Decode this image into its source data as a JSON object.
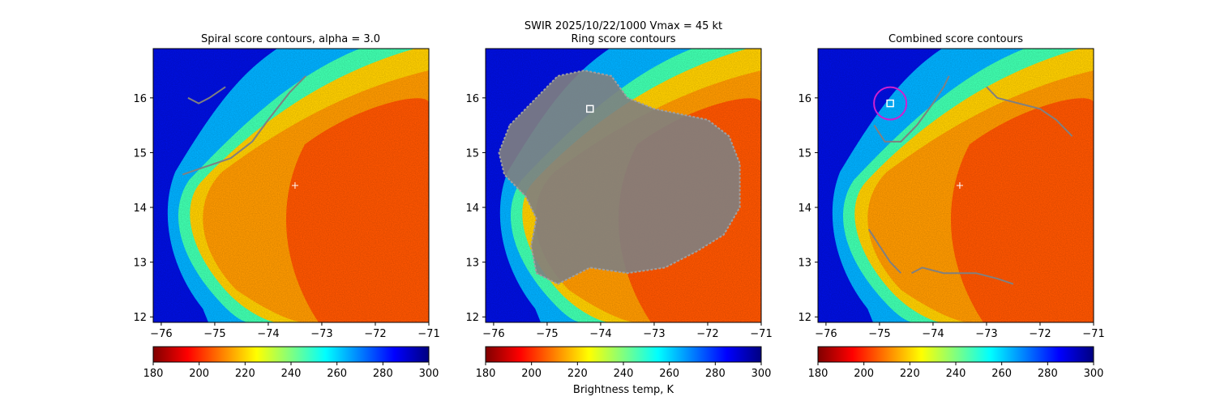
{
  "chart_data": {
    "type": "heatmap",
    "suptitle": "SWIR  2025/10/22/1000    Vmax = 45 kt",
    "colorbar_label": "Brightness temp, K",
    "colorbar_range": [
      180,
      300
    ],
    "colorbar_ticks": [
      180,
      200,
      220,
      240,
      260,
      280,
      300
    ],
    "colormap_stops": [
      {
        "v": 180,
        "c": "#800000"
      },
      {
        "v": 195,
        "c": "#ff0000"
      },
      {
        "v": 210,
        "c": "#ff8000"
      },
      {
        "v": 225,
        "c": "#ffff00"
      },
      {
        "v": 240,
        "c": "#80ff80"
      },
      {
        "v": 255,
        "c": "#00ffff"
      },
      {
        "v": 270,
        "c": "#0080ff"
      },
      {
        "v": 285,
        "c": "#0000ff"
      },
      {
        "v": 300,
        "c": "#000080"
      }
    ],
    "xlim": [
      -76.15,
      -71.0
    ],
    "ylim": [
      11.9,
      16.9
    ],
    "x_ticks": [
      -76,
      -75,
      -74,
      -73,
      -72,
      -71
    ],
    "x_tick_labels": [
      "−76",
      "−75",
      "−74",
      "−73",
      "−72",
      "−71"
    ],
    "y_ticks": [
      12,
      13,
      14,
      15,
      16
    ],
    "y_tick_labels": [
      "12",
      "13",
      "14",
      "15",
      "16"
    ],
    "contour_color": "#808080",
    "panels": [
      {
        "title": "Spiral score contours, alpha =  3.0",
        "center_marker": {
          "x": -73.5,
          "y": 14.4
        },
        "contours": [
          [
            [
              -75.5,
              16.0
            ],
            [
              -75.3,
              15.9
            ],
            [
              -75.1,
              16.0
            ],
            [
              -74.8,
              16.2
            ]
          ],
          [
            [
              -75.6,
              14.6
            ],
            [
              -75.3,
              14.7
            ],
            [
              -75.0,
              14.8
            ],
            [
              -74.7,
              14.9
            ],
            [
              -74.3,
              15.2
            ],
            [
              -74.0,
              15.6
            ],
            [
              -73.6,
              16.1
            ],
            [
              -73.3,
              16.4
            ]
          ]
        ]
      },
      {
        "title": "Ring score contours",
        "center_marker": {
          "x": -74.2,
          "y": 15.8
        },
        "ring_region": [
          [
            -75.7,
            15.5
          ],
          [
            -75.2,
            16.0
          ],
          [
            -74.8,
            16.4
          ],
          [
            -74.3,
            16.5
          ],
          [
            -73.8,
            16.4
          ],
          [
            -73.5,
            16.0
          ],
          [
            -73.0,
            15.8
          ],
          [
            -72.5,
            15.7
          ],
          [
            -72.0,
            15.6
          ],
          [
            -71.6,
            15.3
          ],
          [
            -71.4,
            14.8
          ],
          [
            -71.4,
            14.0
          ],
          [
            -71.7,
            13.5
          ],
          [
            -72.2,
            13.2
          ],
          [
            -72.8,
            12.9
          ],
          [
            -73.5,
            12.8
          ],
          [
            -74.2,
            12.9
          ],
          [
            -74.8,
            12.6
          ],
          [
            -75.2,
            12.8
          ],
          [
            -75.3,
            13.3
          ],
          [
            -75.2,
            13.8
          ],
          [
            -75.4,
            14.2
          ],
          [
            -75.8,
            14.6
          ],
          [
            -75.9,
            15.0
          ]
        ]
      },
      {
        "title": "Combined score contours",
        "center_marker": {
          "x": -73.5,
          "y": 14.4
        },
        "selected_center": {
          "x": -74.8,
          "y": 15.9
        },
        "circle_color": "#d020d0",
        "contours": [
          [
            [
              -75.1,
              15.5
            ],
            [
              -74.9,
              15.2
            ],
            [
              -74.6,
              15.2
            ],
            [
              -74.3,
              15.5
            ],
            [
              -74.0,
              15.9
            ],
            [
              -73.8,
              16.2
            ],
            [
              -73.7,
              16.4
            ]
          ],
          [
            [
              -73.0,
              16.2
            ],
            [
              -72.8,
              16.0
            ],
            [
              -72.4,
              15.9
            ],
            [
              -72.0,
              15.8
            ],
            [
              -71.7,
              15.6
            ],
            [
              -71.4,
              15.3
            ]
          ],
          [
            [
              -75.2,
              13.6
            ],
            [
              -75.0,
              13.3
            ],
            [
              -74.8,
              13.0
            ],
            [
              -74.6,
              12.8
            ]
          ],
          [
            [
              -74.4,
              12.8
            ],
            [
              -74.2,
              12.9
            ],
            [
              -73.8,
              12.8
            ],
            [
              -73.2,
              12.8
            ],
            [
              -72.8,
              12.7
            ],
            [
              -72.5,
              12.6
            ]
          ]
        ]
      }
    ]
  }
}
